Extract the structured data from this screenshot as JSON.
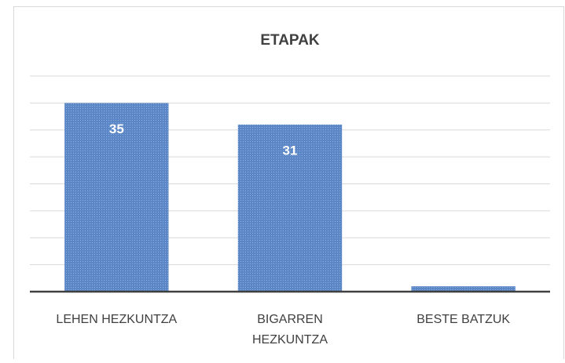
{
  "chart_data": {
    "type": "bar",
    "title": "ETAPAK",
    "categories": [
      "LEHEN HEZKUNTZA",
      "BIGARREN HEZKUNTZA",
      "BESTE BATZUK"
    ],
    "values": [
      35,
      31,
      1
    ],
    "color": "#5b87c6",
    "ylim": [
      0,
      40
    ],
    "yticks": [
      0,
      5,
      10,
      15,
      20,
      25,
      30,
      35,
      40
    ],
    "grid": true
  }
}
